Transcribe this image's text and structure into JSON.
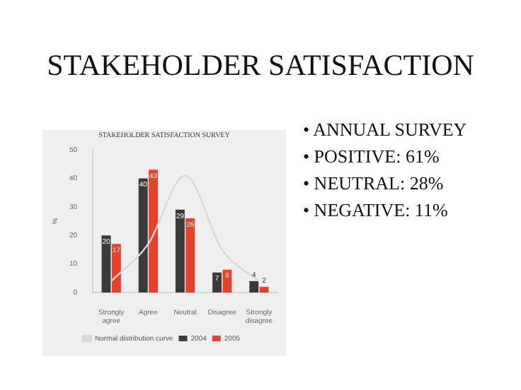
{
  "chart_data": {
    "type": "bar",
    "title": "STAKEHOLDER SATISFACTION",
    "subtitle": "STAKEHOLDER SATISFACTION SURVEY",
    "ylabel": "%",
    "categories": [
      "Strongly agree",
      "Agree",
      "Neutral",
      "Disagree",
      "Strongly disagree"
    ],
    "series": [
      {
        "name": "Normal distribution curve",
        "type": "line",
        "color": "#d9d9d9",
        "values": [
          4,
          17,
          41,
          15,
          4
        ]
      },
      {
        "name": "2004",
        "color": "#3a3a3a",
        "values": [
          20,
          40,
          29,
          7,
          4
        ],
        "value_labels": [
          "20",
          "40",
          "29",
          "7",
          "4"
        ]
      },
      {
        "name": "2005",
        "color": "#e8402a",
        "values": [
          17,
          43,
          26,
          8,
          2
        ],
        "value_labels": [
          "17",
          "43",
          "26",
          "8",
          "2"
        ]
      }
    ],
    "ylim": [
      0,
      50
    ],
    "yticks": [
      0,
      10,
      20,
      30,
      40,
      50
    ],
    "grid": false,
    "legend": "bottom",
    "marker": "none",
    "annotations": [
      "• ANNUAL SURVEY",
      "• POSITIVE: 61%",
      "• NEUTRAL: 28%",
      "• NEGATIVE: 11%"
    ]
  }
}
